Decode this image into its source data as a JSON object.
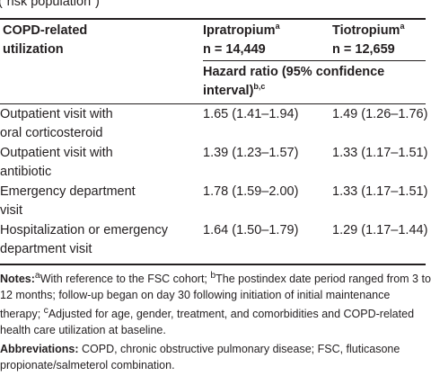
{
  "caption_fragment": "(“risk population”)",
  "table": {
    "col1_header_line1": "COPD-related",
    "col1_header_line2": "utilization",
    "col2_drug": "Ipratropium",
    "col2_drug_sup": "a",
    "col2_n": "n = 14,449",
    "col3_drug": "Tiotropium",
    "col3_drug_sup": "a",
    "col3_n": "n = 12,659",
    "subheader_line1": "Hazard ratio (95% confidence",
    "subheader_line2": "interval)",
    "subheader_sup": "b,c",
    "rows": [
      {
        "label_line1": "Outpatient visit with",
        "label_line2": "oral corticosteroid",
        "ipratropium": "1.65 (1.41–1.94)",
        "tiotropium": "1.49 (1.26–1.76)"
      },
      {
        "label_line1": "Outpatient visit with",
        "label_line2": "antibiotic",
        "ipratropium": "1.39 (1.23–1.57)",
        "tiotropium": "1.33 (1.17–1.51)"
      },
      {
        "label_line1": "Emergency department",
        "label_line2": "visit",
        "ipratropium": "1.78 (1.59–2.00)",
        "tiotropium": "1.33 (1.17–1.51)"
      },
      {
        "label_line1": "Hospitalization or emergency",
        "label_line2": "department visit",
        "ipratropium": "1.64 (1.50–1.79)",
        "tiotropium": "1.29 (1.17–1.44)"
      }
    ]
  },
  "notes": {
    "notes_label": "Notes:",
    "fn_a_mark": "a",
    "fn_a_text": "With reference to the FSC cohort; ",
    "fn_b_mark": "b",
    "fn_b_text": "The postindex date period ranged from 3 to 12 months; follow-up began on day 30 following initiation of initial maintenance therapy; ",
    "fn_c_mark": "c",
    "fn_c_text": "Adjusted for age, gender, treatment, and comorbidities and COPD-related health care utilization at baseline.",
    "abbreviations_label": "Abbreviations:",
    "abbreviations_text": " COPD, chronic obstructive pulmonary disease; FSC, fluticasone propionate/salmeterol combination."
  }
}
